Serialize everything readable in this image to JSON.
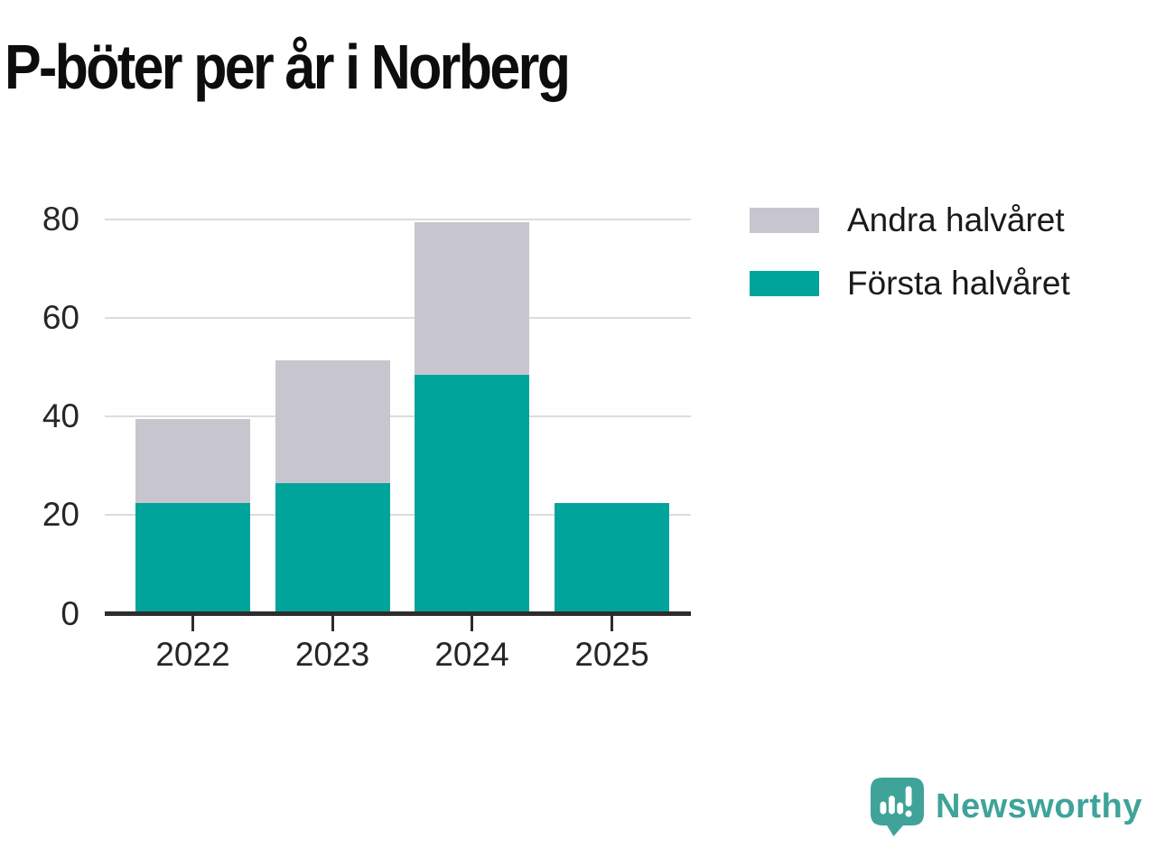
{
  "chart_data": {
    "type": "bar",
    "stacked": true,
    "title": "P-böter per år i Norberg",
    "categories": [
      "2022",
      "2023",
      "2024",
      "2025"
    ],
    "series": [
      {
        "name": "Första halvåret",
        "color": "#00A49A",
        "values": [
          22,
          26,
          48,
          22
        ]
      },
      {
        "name": "Andra halvåret",
        "color": "#C7C6CF",
        "values": [
          17,
          25,
          31,
          0
        ]
      }
    ],
    "totals": [
      39,
      51,
      79,
      22
    ],
    "ylim": [
      0,
      80
    ],
    "yticks": [
      0,
      20,
      40,
      60,
      80
    ],
    "grid": true,
    "legend_position": "top-right",
    "legend_items": [
      {
        "label": "Andra halvåret",
        "color": "#C7C6CF"
      },
      {
        "label": "Första halvåret",
        "color": "#00A49A"
      }
    ]
  },
  "footer": {
    "brand": "Newsworthy",
    "brand_color": "#3FA39A",
    "logo_icon": "newsworthy-speech-bubble-chart"
  },
  "colors": {
    "background": "#FFFFFF",
    "axis": "#2D2D2D",
    "gridline": "#DCDCDC",
    "text": "#262626"
  }
}
